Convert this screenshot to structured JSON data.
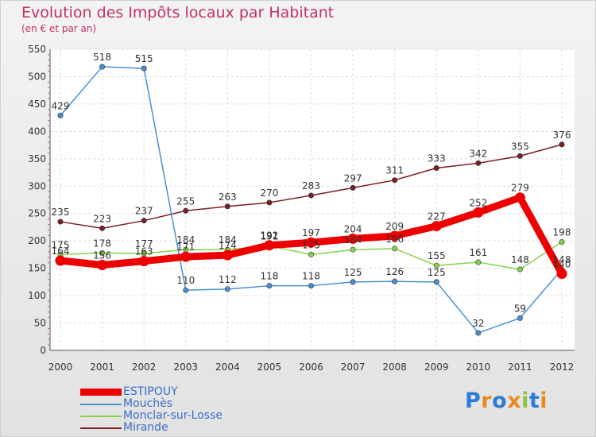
{
  "chart_data": {
    "type": "line",
    "title": "Evolution des Impôts locaux par Habitant",
    "subtitle": "(en € et par an)",
    "xlabel": "",
    "ylabel": "",
    "ylim": [
      0,
      550
    ],
    "yticks": [
      0,
      50,
      100,
      150,
      200,
      250,
      300,
      350,
      400,
      450,
      500,
      550
    ],
    "x": [
      "2000",
      "2001",
      "2002",
      "2003",
      "2004",
      "2005",
      "2006",
      "2007",
      "2008",
      "2009",
      "2010",
      "2011",
      "2012"
    ],
    "grid": true,
    "legend_position": "bottom-left",
    "series": [
      {
        "name": "ESTIPOUY",
        "color": "#ee0000",
        "values": [
          164,
          156,
          163,
          171,
          174,
          192,
          197,
          204,
          209,
          227,
          252,
          279,
          140
        ],
        "labels": [
          "164",
          "156",
          "163",
          "171",
          "174",
          "192",
          "197",
          "204",
          "209",
          "227",
          "252",
          "279",
          "140"
        ]
      },
      {
        "name": "Mouchès",
        "color": "#4b8fd1",
        "values": [
          429,
          518,
          515,
          110,
          112,
          118,
          118,
          125,
          126,
          125,
          32,
          59,
          148
        ],
        "labels": [
          "429",
          "518",
          "515",
          "110",
          "112",
          "118",
          "118",
          "125",
          "126",
          "125",
          "32",
          "59",
          "148"
        ]
      },
      {
        "name": "Monclar-sur-Losse",
        "color": "#88d14a",
        "values": [
          175,
          178,
          177,
          184,
          184,
          191,
          175,
          184,
          186,
          155,
          161,
          148,
          198
        ],
        "labels": [
          "175",
          "178",
          "177",
          "184",
          "184",
          "191",
          "175",
          "184",
          "186",
          "155",
          "161",
          "148",
          "198"
        ]
      },
      {
        "name": "Mirande",
        "color": "#7a1f1f",
        "values": [
          235,
          223,
          237,
          255,
          263,
          270,
          283,
          297,
          311,
          333,
          342,
          355,
          376
        ],
        "labels": [
          "235",
          "223",
          "237",
          "255",
          "263",
          "270",
          "283",
          "297",
          "311",
          "333",
          "342",
          "355",
          "376"
        ]
      }
    ]
  },
  "legend": {
    "items": [
      "ESTIPOUY",
      "Mouchès",
      "Monclar-sur-Losse",
      "Mirande"
    ]
  },
  "branding": {
    "logo_letters": [
      "P",
      "r",
      "o",
      "x",
      "i",
      "t",
      "i"
    ],
    "logo_colors": [
      "#2e7bd6",
      "#e88b1c",
      "#2e7bd6",
      "#e88b1c",
      "#8cc63f",
      "#2e7bd6",
      "#e88b1c"
    ]
  }
}
